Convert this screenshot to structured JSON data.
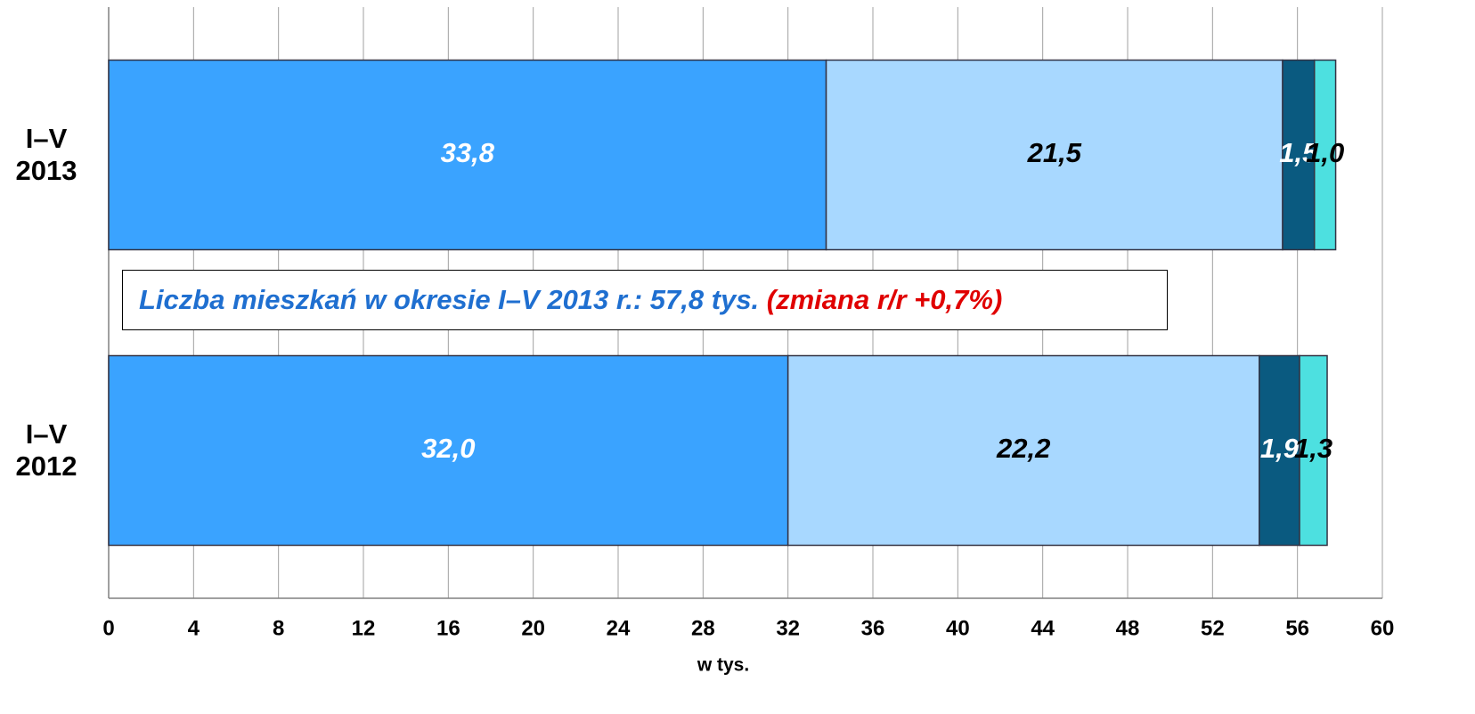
{
  "chart_data": {
    "type": "stacked-bar-horizontal",
    "categories": [
      "I–V 2013",
      "I–V 2012"
    ],
    "series": [
      {
        "color": "#3aa3ff",
        "label_color": "#ffffff",
        "values": [
          33.8,
          32.0
        ],
        "value_labels": [
          "33,8",
          "32,0"
        ]
      },
      {
        "color": "#a8d8ff",
        "label_color": "#000000",
        "values": [
          21.5,
          22.2
        ],
        "value_labels": [
          "21,5",
          "22,2"
        ]
      },
      {
        "color": "#0a5a80",
        "label_color": "#ffffff",
        "values": [
          1.5,
          1.9
        ],
        "value_labels": [
          "1,5",
          "1,9"
        ]
      },
      {
        "color": "#4de0e0",
        "label_color": "#000000",
        "values": [
          1.0,
          1.3
        ],
        "value_labels": [
          "1,0",
          "1,3"
        ]
      }
    ],
    "xlabel": "w tys.",
    "xlim": [
      0,
      60
    ],
    "xticks": [
      0,
      4,
      8,
      12,
      16,
      20,
      24,
      28,
      32,
      36,
      40,
      44,
      48,
      52,
      56,
      60
    ],
    "grid": true,
    "annotation": {
      "text": "Liczba mieszkań w okresie I–V 2013 r.: 57,8 tys.",
      "highlight": "(zmiana r/r +0,7%)",
      "color": "#1f6fd0",
      "highlight_color": "#e00000"
    }
  }
}
